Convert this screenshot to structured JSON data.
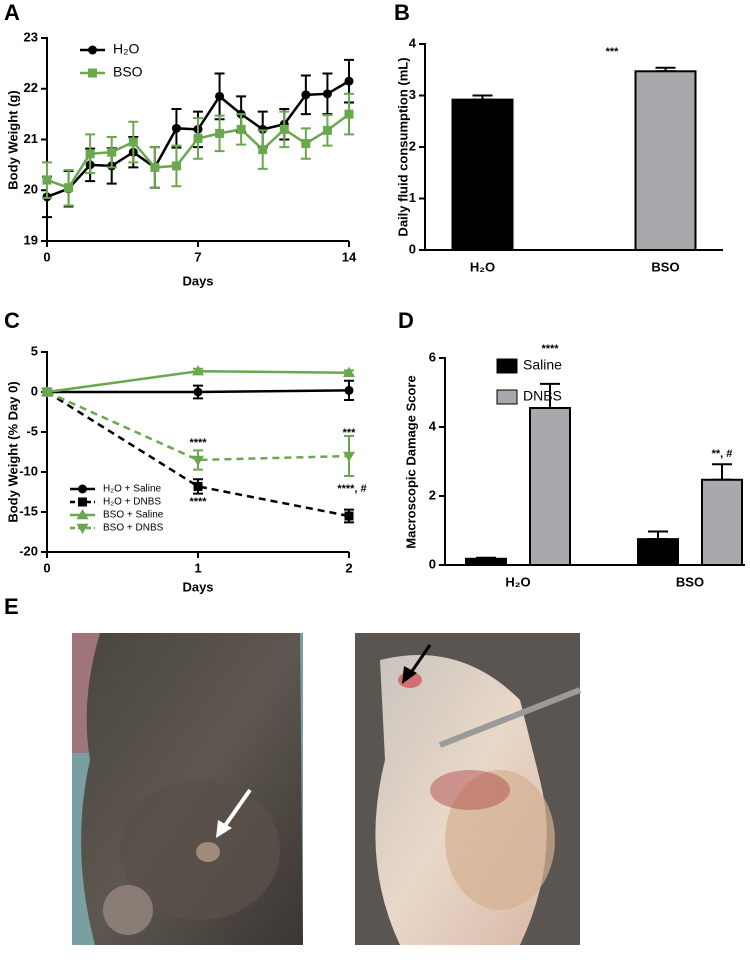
{
  "chart_data": [
    {
      "type": "line",
      "panel": "A",
      "x": [
        0,
        1,
        2,
        3,
        4,
        5,
        6,
        7,
        8,
        9,
        10,
        11,
        12,
        13,
        14
      ],
      "xlim": [
        0,
        14
      ],
      "xticks": [
        0,
        7,
        14
      ],
      "ylim": [
        19,
        23
      ],
      "yticks": [
        19,
        20,
        21,
        22,
        23
      ],
      "xlabel": "Days",
      "ylabel": "Body Weight (g)",
      "legend": "upper left",
      "series": [
        {
          "name": "H₂O",
          "color": "#000000",
          "marker": "circle",
          "dash": false,
          "values": [
            19.87,
            20.03,
            20.5,
            20.48,
            20.75,
            20.45,
            21.22,
            21.2,
            21.85,
            21.5,
            21.2,
            21.3,
            21.88,
            21.9,
            22.15
          ],
          "errors": [
            0.4,
            0.35,
            0.32,
            0.35,
            0.3,
            0.4,
            0.38,
            0.35,
            0.45,
            0.35,
            0.35,
            0.3,
            0.38,
            0.4,
            0.42
          ]
        },
        {
          "name": "BSO",
          "color": "#6aa84f",
          "marker": "square",
          "dash": false,
          "values": [
            20.2,
            20.05,
            20.72,
            20.75,
            20.95,
            20.45,
            20.48,
            21.02,
            21.12,
            21.2,
            20.8,
            21.2,
            20.92,
            21.18,
            21.5
          ],
          "errors": [
            0.35,
            0.35,
            0.38,
            0.3,
            0.4,
            0.4,
            0.4,
            0.4,
            0.35,
            0.3,
            0.38,
            0.35,
            0.3,
            0.3,
            0.4
          ]
        }
      ]
    },
    {
      "type": "bar",
      "panel": "B",
      "categories": [
        "H₂O",
        "BSO"
      ],
      "values": [
        2.92,
        3.47
      ],
      "errors": [
        0.08,
        0.07
      ],
      "colors": [
        "#000000",
        "#a7a9ac"
      ],
      "ylim": [
        0,
        4
      ],
      "yticks": [
        0,
        1,
        2,
        3,
        4
      ],
      "ylabel": "Daily fluid consumption (mL)",
      "annotations": [
        "***"
      ]
    },
    {
      "type": "line",
      "panel": "C",
      "x": [
        0,
        1,
        2
      ],
      "xlim": [
        0,
        2
      ],
      "xticks": [
        0,
        1,
        2
      ],
      "ylim": [
        -20,
        5
      ],
      "yticks": [
        -20,
        -15,
        -10,
        -5,
        0,
        5
      ],
      "xlabel": "Days",
      "ylabel": "Body Weight (% Day 0)",
      "legend": "lower left",
      "annotations": [
        "****",
        "****",
        "***",
        "****, #"
      ],
      "series": [
        {
          "name": "H₂O + Saline",
          "color": "#000000",
          "marker": "circle",
          "dash": false,
          "values": [
            0,
            0,
            0.2
          ],
          "errors": [
            0,
            0.8,
            1.2
          ]
        },
        {
          "name": "H₂O + DNBS",
          "color": "#000000",
          "marker": "square",
          "dash": true,
          "values": [
            0,
            -11.8,
            -15.5
          ],
          "errors": [
            0,
            0.9,
            0.8
          ]
        },
        {
          "name": "BSO + Saline",
          "color": "#6aa84f",
          "marker": "triangle-up",
          "dash": false,
          "values": [
            0,
            2.6,
            2.4
          ],
          "errors": [
            0,
            0.3,
            0.3
          ]
        },
        {
          "name": "BSO + DNBS",
          "color": "#6aa84f",
          "marker": "triangle-down",
          "dash": true,
          "values": [
            0,
            -8.5,
            -8
          ],
          "errors": [
            0,
            1.2,
            2.5
          ]
        }
      ]
    },
    {
      "type": "grouped_bar",
      "panel": "D",
      "categories": [
        "H₂O",
        "BSO"
      ],
      "ylim": [
        0,
        6
      ],
      "yticks": [
        0,
        2,
        4,
        6
      ],
      "ylabel": "Macroscopic Damage Score",
      "legend": "upper right",
      "annotations": [
        "****",
        "**, #"
      ],
      "series": [
        {
          "name": "Saline",
          "color": "#000000",
          "values": [
            0.18,
            0.75
          ],
          "errors": [
            0.03,
            0.22
          ]
        },
        {
          "name": "DNBS",
          "color": "#a7a9ac",
          "values": [
            4.55,
            2.47
          ],
          "errors": [
            0.7,
            0.45
          ]
        }
      ]
    }
  ],
  "photo_panel": {
    "panel": "E"
  }
}
